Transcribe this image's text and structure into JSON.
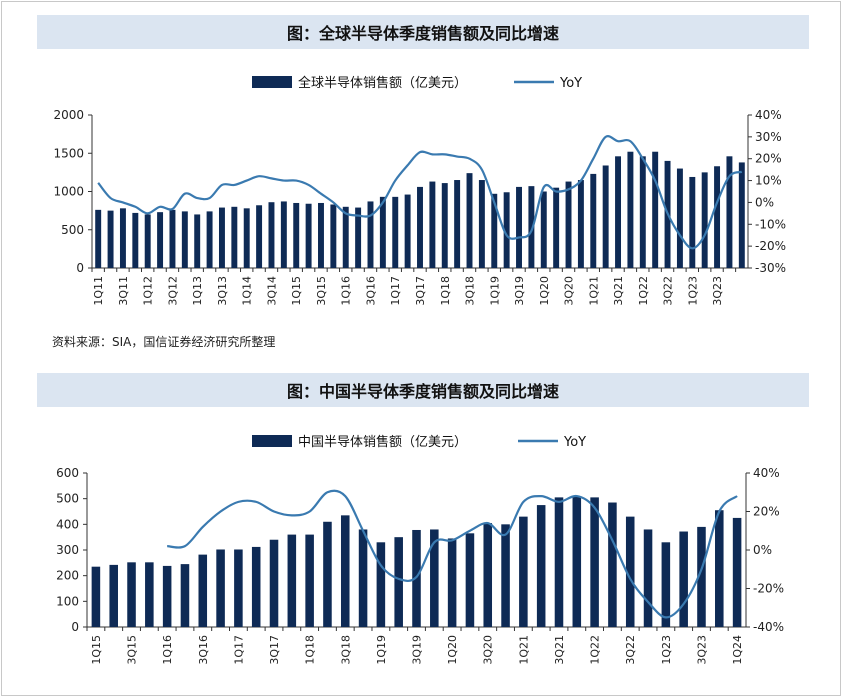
{
  "charts": {
    "chart1_title": "图：全球半导体季度销售额及同比增速",
    "chart2_title": "图：中国半导体季度销售额及同比增速",
    "source_note": "资料来源：SIA，国信证券经济研究所整理"
  },
  "colors": {
    "bar": "#0e2a55",
    "line": "#3a7ab0",
    "title_bg": "#dbe5f1"
  },
  "chart_data": [
    {
      "type": "bar",
      "title": "图：全球半导体季度销售额及同比增速",
      "legend": [
        "全球半导体销售额（亿美元）",
        "YoY"
      ],
      "legend_placement": "top-center",
      "x_tick_labels": [
        "1Q11",
        "3Q11",
        "1Q12",
        "3Q12",
        "1Q13",
        "3Q13",
        "1Q14",
        "3Q14",
        "1Q15",
        "3Q15",
        "1Q16",
        "3Q16",
        "1Q17",
        "3Q17",
        "1Q18",
        "3Q18",
        "1Q19",
        "3Q19",
        "1Q20",
        "3Q20",
        "1Q21",
        "3Q21",
        "1Q22",
        "3Q22",
        "1Q23",
        "3Q23"
      ],
      "bar_values": [
        760,
        750,
        780,
        720,
        700,
        730,
        760,
        740,
        700,
        740,
        790,
        800,
        780,
        820,
        860,
        870,
        850,
        840,
        850,
        830,
        800,
        790,
        870,
        930,
        930,
        960,
        1060,
        1130,
        1110,
        1150,
        1240,
        1150,
        970,
        990,
        1060,
        1070,
        1000,
        1050,
        1130,
        1150,
        1230,
        1340,
        1460,
        1520,
        1460,
        1520,
        1400,
        1300,
        1190,
        1250,
        1330,
        1460,
        1380
      ],
      "yoy_values": [
        9,
        2,
        0,
        -2,
        -5,
        -2,
        -3,
        4,
        2,
        2,
        8,
        8,
        10,
        12,
        11,
        10,
        10,
        8,
        4,
        0,
        -5,
        -6,
        -6,
        0,
        10,
        17,
        23,
        22,
        22,
        21,
        20,
        15,
        0,
        -15,
        -16,
        -13,
        7,
        5,
        6,
        10,
        20,
        30,
        28,
        28,
        20,
        10,
        -5,
        -15,
        -21,
        -15,
        0,
        12,
        14
      ],
      "y_left_ticks": [
        "2000",
        "1500",
        "1000",
        "500",
        "0"
      ],
      "y_left_range": [
        0,
        2000
      ],
      "y_right_ticks": [
        "40%",
        "30%",
        "20%",
        "10%",
        "0%",
        "-10%",
        "-20%",
        "-30%"
      ],
      "y_right_range": [
        -30,
        40
      ]
    },
    {
      "type": "bar",
      "title": "图：中国半导体季度销售额及同比增速",
      "legend": [
        "中国半导体销售额（亿美元）",
        "YoY"
      ],
      "legend_placement": "top-center",
      "x_tick_labels": [
        "1Q15",
        "3Q15",
        "1Q16",
        "3Q16",
        "1Q17",
        "3Q17",
        "1Q18",
        "3Q18",
        "1Q19",
        "3Q19",
        "1Q20",
        "3Q20",
        "1Q21",
        "3Q21",
        "1Q22",
        "3Q22",
        "1Q23",
        "3Q23",
        "1Q24"
      ],
      "bar_values": [
        235,
        242,
        252,
        252,
        238,
        245,
        282,
        302,
        302,
        312,
        340,
        360,
        360,
        410,
        435,
        380,
        330,
        350,
        378,
        380,
        345,
        365,
        405,
        400,
        430,
        475,
        505,
        510,
        505,
        485,
        430,
        380,
        330,
        372,
        390,
        455,
        425
      ],
      "yoy_values": [
        null,
        null,
        null,
        null,
        2,
        2,
        12,
        20,
        25,
        25,
        20,
        18,
        20,
        30,
        28,
        10,
        -8,
        -15,
        -14,
        4,
        5,
        10,
        14,
        8,
        25,
        28,
        25,
        28,
        22,
        5,
        -15,
        -27,
        -35,
        -28,
        -10,
        20,
        28
      ],
      "y_left_ticks": [
        "600",
        "500",
        "400",
        "300",
        "200",
        "100",
        "0"
      ],
      "y_left_range": [
        0,
        600
      ],
      "y_right_ticks": [
        "40%",
        "20%",
        "0%",
        "-20%",
        "-40%"
      ],
      "y_right_range": [
        -40,
        40
      ]
    }
  ]
}
